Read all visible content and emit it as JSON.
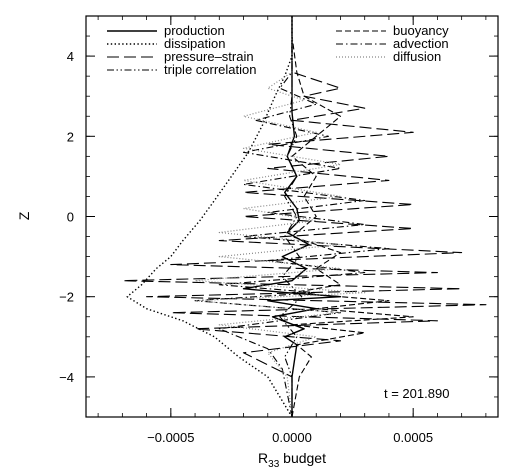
{
  "chart_data": {
    "type": "line",
    "orientation": "vertical-profile",
    "xlabel_prefix": "R",
    "xlabel_sub": "33",
    "xlabel_suffix": " budget",
    "ylabel": "Z",
    "xlim": [
      -0.00085,
      0.00085
    ],
    "ylim": [
      -5,
      5
    ],
    "xticks": [
      -0.0005,
      0.0,
      0.0005
    ],
    "xtick_labels": [
      "−0.0005",
      "0.0000",
      "0.0005"
    ],
    "yticks": [
      -4,
      -2,
      0,
      2,
      4
    ],
    "ytick_labels": [
      "−4",
      "−2",
      "0",
      "2",
      "4"
    ],
    "grid": false,
    "legend_position": "top",
    "annotation": "t = 201.890",
    "series": [
      {
        "name": "production",
        "dash": "solid",
        "points": [
          [
            0.0,
            -5.0
          ],
          [
            0.0,
            -4.0
          ],
          [
            2e-05,
            -3.2
          ],
          [
            -3e-05,
            -3.0
          ],
          [
            5e-05,
            -2.8
          ],
          [
            -8e-05,
            -2.5
          ],
          [
            0.0001,
            -2.3
          ],
          [
            -0.0001,
            -2.1
          ],
          [
            0.0002,
            -2.0
          ],
          [
            -2e-05,
            -1.9
          ],
          [
            -0.0002,
            -1.8
          ],
          [
            0.0,
            -1.6
          ],
          [
            6e-05,
            -1.3
          ],
          [
            -4e-05,
            -1.0
          ],
          [
            7e-05,
            -0.7
          ],
          [
            -2e-05,
            -0.4
          ],
          [
            3e-05,
            -0.1
          ],
          [
            2e-05,
            0.2
          ],
          [
            -3e-05,
            0.6
          ],
          [
            2e-05,
            1.0
          ],
          [
            -2e-05,
            1.5
          ],
          [
            1e-05,
            2.0
          ],
          [
            0.0,
            2.6
          ],
          [
            0.0,
            3.2
          ],
          [
            0.0,
            4.0
          ],
          [
            0.0,
            5.0
          ]
        ]
      },
      {
        "name": "buoyancy",
        "dash": "short-dash",
        "points": [
          [
            0.0,
            -5.0
          ],
          [
            3e-05,
            -4.0
          ],
          [
            8e-05,
            -3.5
          ],
          [
            2e-05,
            -3.2
          ],
          [
            0.0003,
            -2.9
          ],
          [
            0.0,
            -2.7
          ],
          [
            0.0005,
            -2.5
          ],
          [
            0.0001,
            -2.3
          ],
          [
            0.0004,
            -2.1
          ],
          [
            0.0,
            -1.9
          ],
          [
            0.0002,
            -1.7
          ],
          [
            0.0001,
            -1.3
          ],
          [
            0.0002,
            -0.9
          ],
          [
            0.0,
            -0.5
          ],
          [
            0.0001,
            0.0
          ],
          [
            5e-05,
            0.5
          ],
          [
            0.0001,
            1.0
          ],
          [
            0.0,
            1.5
          ],
          [
            0.0001,
            2.0
          ],
          [
            0.0002,
            2.5
          ],
          [
            5e-05,
            3.0
          ],
          [
            2e-05,
            3.6
          ],
          [
            0.0,
            4.5
          ]
        ]
      },
      {
        "name": "dissipation",
        "dash": "dotted",
        "points": [
          [
            0.0,
            -5.0
          ],
          [
            -0.0001,
            -4.0
          ],
          [
            -0.00022,
            -3.5
          ],
          [
            -0.00032,
            -3.0
          ],
          [
            -0.00045,
            -2.6
          ],
          [
            -0.0006,
            -2.3
          ],
          [
            -0.00068,
            -2.0
          ],
          [
            -0.00062,
            -1.7
          ],
          [
            -0.00056,
            -1.3
          ],
          [
            -0.0005,
            -1.0
          ],
          [
            -0.00045,
            -0.6
          ],
          [
            -0.00038,
            -0.1
          ],
          [
            -0.00032,
            0.4
          ],
          [
            -0.00025,
            1.0
          ],
          [
            -0.00018,
            1.6
          ],
          [
            -0.00012,
            2.3
          ],
          [
            -7e-05,
            3.0
          ],
          [
            -3e-05,
            3.5
          ],
          [
            0.0,
            4.0
          ],
          [
            0.0,
            5.0
          ]
        ]
      },
      {
        "name": "advection",
        "dash": "dash-dot",
        "points": [
          [
            0.0,
            -5.0
          ],
          [
            -4e-05,
            -3.8
          ],
          [
            -0.0001,
            -3.3
          ],
          [
            -0.0003,
            -2.8
          ],
          [
            0.0002,
            -2.4
          ],
          [
            -0.0004,
            -2.1
          ],
          [
            0.0001,
            -1.9
          ],
          [
            -0.0003,
            -1.7
          ],
          [
            0.0003,
            -1.4
          ],
          [
            -0.0001,
            -1.1
          ],
          [
            0.0004,
            -0.8
          ],
          [
            -0.0002,
            -0.5
          ],
          [
            0.0003,
            -0.2
          ],
          [
            -0.0001,
            0.1
          ],
          [
            0.0003,
            0.4
          ],
          [
            -0.0002,
            0.8
          ],
          [
            0.0002,
            1.2
          ],
          [
            -0.0002,
            1.6
          ],
          [
            0.00015,
            2.0
          ],
          [
            -0.00015,
            2.4
          ],
          [
            0.0001,
            2.8
          ],
          [
            -5e-05,
            3.2
          ],
          [
            0.0,
            3.6
          ],
          [
            0.0,
            4.5
          ]
        ]
      },
      {
        "name": "pressure–strain",
        "dash": "long-dash",
        "points": [
          [
            0.0,
            -5.0
          ],
          [
            0.0,
            -4.0
          ],
          [
            -0.0002,
            -3.4
          ],
          [
            0.0002,
            -3.1
          ],
          [
            -0.0004,
            -2.8
          ],
          [
            0.0006,
            -2.6
          ],
          [
            -0.0005,
            -2.4
          ],
          [
            0.0008,
            -2.2
          ],
          [
            -0.0006,
            -2.0
          ],
          [
            0.0007,
            -1.8
          ],
          [
            -0.0007,
            -1.6
          ],
          [
            0.0006,
            -1.4
          ],
          [
            -0.0005,
            -1.2
          ],
          [
            0.0007,
            -0.9
          ],
          [
            -0.0003,
            -0.6
          ],
          [
            0.0005,
            -0.3
          ],
          [
            -0.0002,
            0.0
          ],
          [
            0.0005,
            0.3
          ],
          [
            -0.0002,
            0.6
          ],
          [
            0.0004,
            0.9
          ],
          [
            -0.0001,
            1.2
          ],
          [
            0.0004,
            1.5
          ],
          [
            -0.0001,
            1.8
          ],
          [
            0.0005,
            2.1
          ],
          [
            0.0,
            2.4
          ],
          [
            0.0003,
            2.7
          ],
          [
            5e-05,
            3.0
          ],
          [
            0.0002,
            3.2
          ],
          [
            0.0,
            3.6
          ],
          [
            0.0,
            4.5
          ]
        ]
      },
      {
        "name": "diffusion",
        "dash": "fine-dotted",
        "points": [
          [
            0.0,
            -5.0
          ],
          [
            -2e-05,
            -4.0
          ],
          [
            -0.0001,
            -3.4
          ],
          [
            0.0001,
            -3.0
          ],
          [
            -0.0003,
            -2.7
          ],
          [
            0.0002,
            -2.4
          ],
          [
            -0.0004,
            -2.1
          ],
          [
            0.0003,
            -1.9
          ],
          [
            -0.0004,
            -1.6
          ],
          [
            0.0002,
            -1.3
          ],
          [
            -0.0003,
            -1.0
          ],
          [
            0.0002,
            -0.7
          ],
          [
            -0.0003,
            -0.4
          ],
          [
            0.0001,
            -0.1
          ],
          [
            -0.0002,
            0.2
          ],
          [
            0.0002,
            0.5
          ],
          [
            -0.0002,
            0.9
          ],
          [
            0.0002,
            1.3
          ],
          [
            -0.0002,
            1.7
          ],
          [
            0.0001,
            2.1
          ],
          [
            -0.0002,
            2.5
          ],
          [
            5e-05,
            2.9
          ],
          [
            -0.0001,
            3.2
          ],
          [
            0.0,
            3.6
          ],
          [
            0.0,
            4.5
          ]
        ]
      },
      {
        "name": "triple correlation",
        "dash": "dash-dot-dot",
        "points": [
          [
            0.0,
            -5.0
          ],
          [
            0.0,
            -4.0
          ],
          [
            -3e-05,
            -3.5
          ],
          [
            2e-05,
            -3.0
          ],
          [
            -5e-05,
            -2.5
          ],
          [
            4e-05,
            -2.0
          ],
          [
            -4e-05,
            -1.5
          ],
          [
            3e-05,
            -1.0
          ],
          [
            -3e-05,
            -0.5
          ],
          [
            2e-05,
            0.0
          ],
          [
            -3e-05,
            0.5
          ],
          [
            2e-05,
            1.0
          ],
          [
            -2e-05,
            1.5
          ],
          [
            2e-05,
            2.0
          ],
          [
            -1e-05,
            2.5
          ],
          [
            0.0,
            3.0
          ],
          [
            0.0,
            4.0
          ],
          [
            0.0,
            5.0
          ]
        ]
      }
    ]
  }
}
